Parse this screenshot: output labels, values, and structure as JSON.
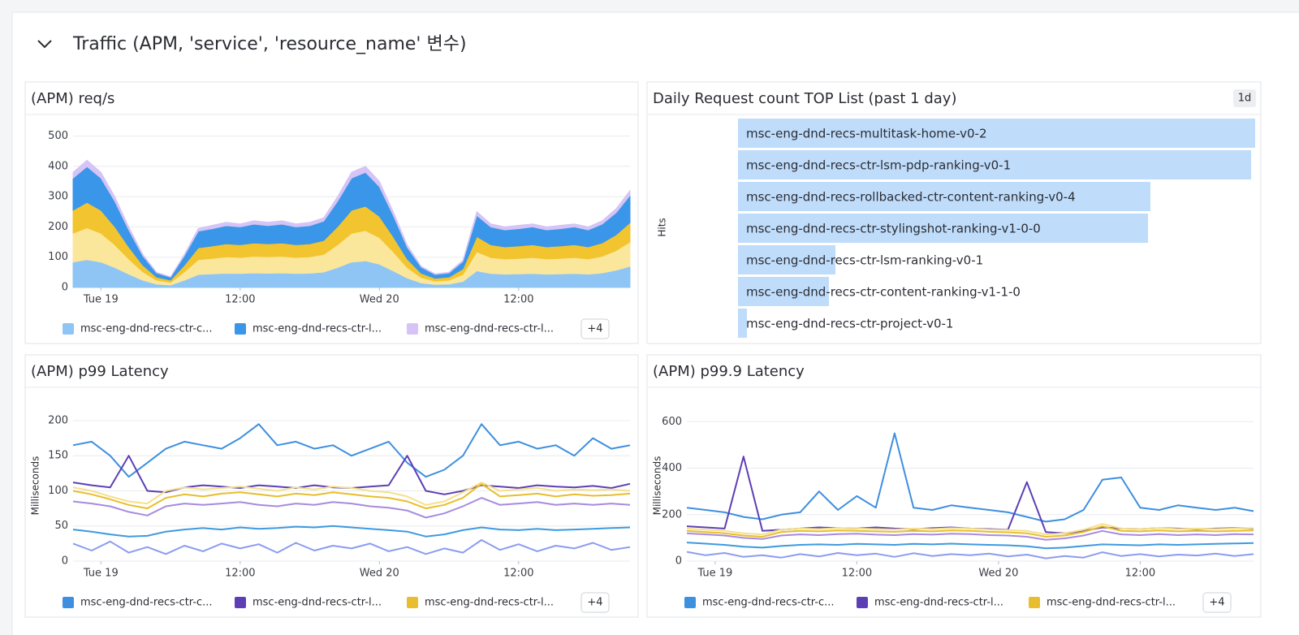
{
  "section_title": "Traffic (APM, 'service', 'resource_name' 변수)",
  "chart_data": [
    {
      "type": "area",
      "stacked": true,
      "title": "(APM) req/s",
      "grid": true,
      "ylim": [
        0,
        520
      ],
      "yticks": [
        0,
        100,
        200,
        300,
        400,
        500
      ],
      "xlim": [
        -2.4,
        45.6
      ],
      "xticks": [
        {
          "value": 0,
          "label": "Tue 19"
        },
        {
          "value": 12,
          "label": "12:00"
        },
        {
          "value": 24,
          "label": "Wed 20"
        },
        {
          "value": 36,
          "label": "12:00"
        }
      ],
      "x": [
        -2.4,
        -1.2,
        0,
        1.2,
        2.4,
        3.6,
        4.8,
        6,
        7.2,
        8.4,
        9.6,
        10.8,
        12,
        13.2,
        14.4,
        15.6,
        16.8,
        18,
        19.2,
        20.4,
        21.6,
        22.8,
        24,
        25.2,
        26.4,
        27.6,
        28.8,
        30,
        31.2,
        32.4,
        33.6,
        34.8,
        36,
        37.2,
        38.4,
        39.6,
        40.8,
        42,
        43.2,
        44.4,
        45.6
      ],
      "series": [
        {
          "name": "msc-eng-dnd-recs-ctr-c...",
          "color": "#8ec5f5",
          "values": [
            84,
            92,
            84,
            66,
            44,
            24,
            11,
            8,
            24,
            43,
            45,
            47,
            46,
            48,
            47,
            48,
            46,
            47,
            51,
            66,
            84,
            88,
            77,
            55,
            31,
            15,
            10,
            11,
            20,
            55,
            46,
            44,
            45,
            46,
            44,
            45,
            46,
            44,
            48,
            57,
            70
          ]
        },
        {
          "color": "#fbe79b",
          "values": [
            95,
            105,
            95,
            75,
            50,
            28,
            13,
            9,
            28,
            49,
            51,
            54,
            53,
            55,
            54,
            55,
            53,
            54,
            58,
            75,
            95,
            100,
            88,
            63,
            35,
            18,
            11,
            13,
            23,
            63,
            53,
            50,
            51,
            53,
            50,
            51,
            53,
            50,
            55,
            65,
            80
          ]
        },
        {
          "color": "#f2c42f",
          "values": [
            76,
            84,
            76,
            60,
            40,
            22,
            10,
            7,
            22,
            39,
            41,
            43,
            42,
            44,
            43,
            44,
            42,
            43,
            46,
            60,
            76,
            80,
            70,
            50,
            28,
            14,
            9,
            10,
            18,
            50,
            42,
            40,
            41,
            42,
            40,
            41,
            42,
            40,
            44,
            52,
            64
          ]
        },
        {
          "name": "msc-eng-dnd-recs-ctr-l...",
          "color": "#3a96e8",
          "values": [
            106,
            118,
            106,
            84,
            56,
            31,
            14,
            10,
            31,
            55,
            57,
            60,
            59,
            62,
            60,
            62,
            59,
            60,
            64,
            84,
            106,
            112,
            98,
            70,
            39,
            20,
            13,
            14,
            25,
            70,
            59,
            56,
            57,
            59,
            56,
            57,
            59,
            56,
            62,
            73,
            90
          ]
        },
        {
          "name": "msc-eng-dnd-recs-ctr-l...",
          "color": "#d5c4f5",
          "values": [
            19,
            21,
            19,
            15,
            10,
            5,
            2,
            1,
            5,
            9,
            11,
            11,
            10,
            11,
            11,
            11,
            10,
            11,
            11,
            15,
            19,
            20,
            17,
            12,
            7,
            3,
            2,
            2,
            4,
            12,
            10,
            10,
            11,
            10,
            10,
            11,
            10,
            10,
            11,
            13,
            16
          ]
        }
      ],
      "legend_more": "+4"
    },
    {
      "type": "bar",
      "orientation": "horizontal",
      "title": "Daily Request count TOP List (past 1 day)",
      "badge": "1d",
      "ylabel": "Hits",
      "color": "#bfdcfb",
      "categories": [
        "msc-eng-dnd-recs-multitask-home-v0-2",
        "msc-eng-dnd-recs-ctr-lsm-pdp-ranking-v0-1",
        "msc-eng-dnd-recs-rollbacked-ctr-content-ranking-v0-4",
        "msc-eng-dnd-recs-ctr-stylingshot-ranking-v1-0-0",
        "msc-eng-dnd-recs-ctr-lsm-ranking-v0-1",
        "msc-eng-dnd-recs-ctr-content-ranking-v1-1-0",
        "msc-eng-dnd-recs-ctr-project-v0-1"
      ],
      "values": [
        637,
        632,
        508,
        505,
        120,
        112,
        11
      ]
    },
    {
      "type": "line",
      "title": "(APM) p99 Latency",
      "ylabel": "Milliseconds",
      "grid": true,
      "ylim": [
        0,
        215
      ],
      "yticks": [
        0,
        50,
        100,
        150,
        200
      ],
      "xlim": [
        -2.4,
        45.6
      ],
      "xticks": [
        {
          "value": 0,
          "label": "Tue 19"
        },
        {
          "value": 12,
          "label": "12:00"
        },
        {
          "value": 24,
          "label": "Wed 20"
        },
        {
          "value": 36,
          "label": "12:00"
        }
      ],
      "x": [
        -2.4,
        -0.8,
        0.8,
        2.4,
        4,
        5.6,
        7.2,
        8.8,
        10.4,
        12,
        13.6,
        15.2,
        16.8,
        18.4,
        20,
        21.6,
        23.2,
        24.8,
        26.4,
        28,
        29.6,
        31.2,
        32.8,
        34.4,
        36,
        37.6,
        39.2,
        40.8,
        42.4,
        44,
        45.6
      ],
      "series": [
        {
          "name": "msc-eng-dnd-recs-ctr-c...",
          "color": "#3d8fe0",
          "values": [
            165,
            170,
            150,
            120,
            140,
            160,
            170,
            165,
            160,
            175,
            195,
            165,
            170,
            160,
            165,
            150,
            160,
            170,
            140,
            120,
            130,
            150,
            195,
            165,
            170,
            160,
            165,
            150,
            175,
            160,
            165
          ]
        },
        {
          "name": "msc-eng-dnd-recs-ctr-l...",
          "color": "#5d3fb5",
          "values": [
            112,
            108,
            105,
            150,
            100,
            98,
            105,
            108,
            106,
            104,
            108,
            106,
            104,
            108,
            105,
            104,
            106,
            108,
            150,
            100,
            95,
            100,
            108,
            106,
            104,
            108,
            106,
            105,
            107,
            104,
            110
          ]
        },
        {
          "name": "msc-eng-dnd-recs-ctr-l...",
          "color": "#e8be2e",
          "values": [
            100,
            95,
            88,
            80,
            75,
            90,
            95,
            92,
            96,
            98,
            95,
            92,
            96,
            94,
            98,
            95,
            92,
            90,
            85,
            75,
            80,
            90,
            110,
            92,
            94,
            96,
            92,
            95,
            93,
            94,
            96
          ]
        },
        {
          "color": "#f5e08c",
          "values": [
            105,
            100,
            92,
            85,
            82,
            100,
            105,
            102,
            104,
            106,
            103,
            100,
            105,
            102,
            106,
            104,
            100,
            98,
            92,
            80,
            85,
            98,
            112,
            100,
            102,
            104,
            100,
            102,
            101,
            102,
            100
          ]
        },
        {
          "color": "#a78bdf",
          "values": [
            85,
            82,
            78,
            70,
            65,
            78,
            82,
            80,
            82,
            84,
            80,
            78,
            82,
            80,
            84,
            82,
            78,
            76,
            72,
            62,
            68,
            78,
            90,
            80,
            82,
            84,
            80,
            82,
            80,
            82,
            80
          ]
        },
        {
          "color": "#3d9ae0",
          "values": [
            45,
            42,
            38,
            35,
            36,
            42,
            45,
            47,
            45,
            48,
            46,
            47,
            49,
            48,
            50,
            48,
            46,
            44,
            42,
            35,
            38,
            44,
            48,
            45,
            44,
            46,
            44,
            45,
            46,
            47,
            48
          ]
        },
        {
          "color": "#8c9cf0",
          "values": [
            25,
            15,
            28,
            12,
            20,
            10,
            22,
            14,
            25,
            18,
            24,
            12,
            26,
            15,
            22,
            18,
            25,
            14,
            20,
            10,
            18,
            12,
            30,
            16,
            24,
            14,
            22,
            18,
            26,
            16,
            20
          ]
        }
      ],
      "legend_more": "+4"
    },
    {
      "type": "line",
      "title": "(APM) p99.9 Latency",
      "ylabel": "Milliseconds",
      "grid": true,
      "ylim": [
        0,
        650
      ],
      "yticks": [
        0,
        200,
        400,
        600
      ],
      "xlim": [
        -2.4,
        45.6
      ],
      "xticks": [
        {
          "value": 0,
          "label": "Tue 19"
        },
        {
          "value": 12,
          "label": "12:00"
        },
        {
          "value": 24,
          "label": "Wed 20"
        },
        {
          "value": 36,
          "label": "12:00"
        }
      ],
      "x": [
        -2.4,
        -0.8,
        0.8,
        2.4,
        4,
        5.6,
        7.2,
        8.8,
        10.4,
        12,
        13.6,
        15.2,
        16.8,
        18.4,
        20,
        21.6,
        23.2,
        24.8,
        26.4,
        28,
        29.6,
        31.2,
        32.8,
        34.4,
        36,
        37.6,
        39.2,
        40.8,
        42.4,
        44,
        45.6
      ],
      "series": [
        {
          "name": "msc-eng-dnd-recs-ctr-c...",
          "color": "#3d8fe0",
          "values": [
            230,
            220,
            210,
            190,
            180,
            200,
            210,
            300,
            220,
            280,
            230,
            550,
            230,
            220,
            240,
            230,
            220,
            210,
            190,
            170,
            180,
            220,
            350,
            360,
            230,
            220,
            240,
            230,
            220,
            230,
            215
          ]
        },
        {
          "name": "msc-eng-dnd-recs-ctr-l...",
          "color": "#5d3fb5",
          "values": [
            150,
            145,
            140,
            450,
            130,
            135,
            140,
            145,
            142,
            140,
            145,
            140,
            138,
            142,
            145,
            140,
            138,
            135,
            340,
            125,
            120,
            130,
            145,
            140,
            138,
            142,
            140,
            138,
            140,
            142,
            140
          ]
        },
        {
          "name": "msc-eng-dnd-recs-ctr-l...",
          "color": "#e8be2e",
          "values": [
            130,
            125,
            120,
            110,
            105,
            125,
            130,
            128,
            132,
            130,
            128,
            126,
            130,
            128,
            132,
            130,
            126,
            124,
            120,
            105,
            110,
            125,
            150,
            130,
            128,
            132,
            128,
            130,
            128,
            130,
            132
          ]
        },
        {
          "color": "#f5e08c",
          "values": [
            140,
            135,
            130,
            120,
            115,
            135,
            140,
            138,
            142,
            140,
            138,
            136,
            140,
            138,
            142,
            140,
            136,
            134,
            130,
            115,
            120,
            135,
            160,
            140,
            138,
            142,
            138,
            140,
            138,
            140,
            142
          ]
        },
        {
          "color": "#a78bdf",
          "values": [
            120,
            115,
            110,
            100,
            95,
            110,
            115,
            112,
            116,
            118,
            114,
            112,
            116,
            114,
            118,
            116,
            112,
            110,
            105,
            92,
            98,
            110,
            130,
            115,
            112,
            116,
            112,
            115,
            112,
            116,
            115
          ]
        },
        {
          "color": "#3d9ae0",
          "values": [
            80,
            75,
            70,
            62,
            58,
            65,
            70,
            72,
            70,
            74,
            72,
            70,
            74,
            72,
            75,
            72,
            70,
            68,
            64,
            55,
            58,
            65,
            72,
            70,
            68,
            72,
            70,
            72,
            74,
            76,
            78
          ]
        },
        {
          "color": "#8c9cf0",
          "values": [
            40,
            25,
            35,
            18,
            25,
            15,
            30,
            20,
            35,
            25,
            32,
            18,
            34,
            22,
            30,
            25,
            32,
            20,
            28,
            12,
            22,
            15,
            38,
            22,
            30,
            20,
            28,
            24,
            32,
            22,
            30
          ]
        }
      ],
      "legend_more": "+4"
    }
  ]
}
